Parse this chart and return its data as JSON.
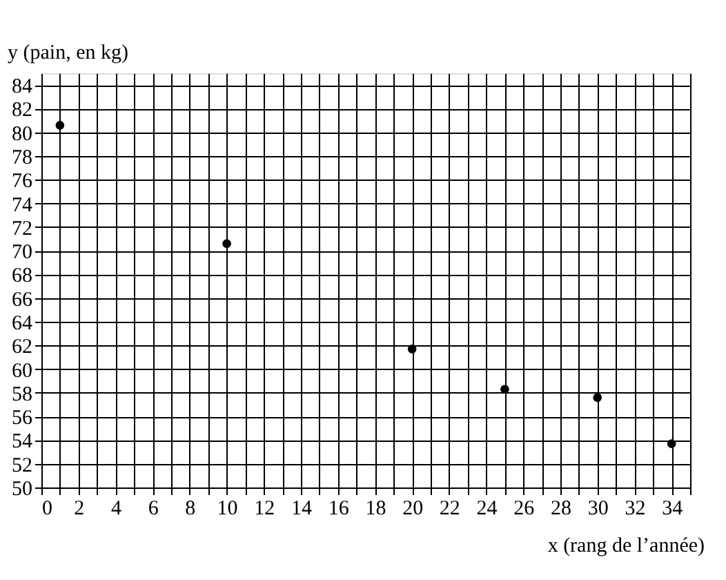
{
  "chart_data": {
    "type": "scatter",
    "xlabel": "x (rang de l’année)",
    "ylabel": "y (pain, en kg)",
    "x": [
      1,
      10,
      20,
      25,
      30,
      34
    ],
    "series": [
      {
        "color": "#000000",
        "values": [
          80.6,
          70.6,
          61.7,
          58.3,
          57.6,
          53.7
        ]
      }
    ],
    "xlim": [
      0,
      35
    ],
    "ylim": [
      50,
      85
    ],
    "xticks": [
      0,
      {
        "value": 1,
        "label": null
      },
      2,
      {
        "value": 3,
        "label": null
      },
      4,
      {
        "value": 5,
        "label": null
      },
      6,
      {
        "value": 7,
        "label": null
      },
      8,
      {
        "value": 9,
        "label": null
      },
      10,
      {
        "value": 11,
        "label": null
      },
      12,
      {
        "value": 13,
        "label": null
      },
      14,
      {
        "value": 15,
        "label": null
      },
      16,
      {
        "value": 17,
        "label": null
      },
      18,
      {
        "value": 19,
        "label": null
      },
      20,
      {
        "value": 21,
        "label": null
      },
      22,
      {
        "value": 23,
        "label": null
      },
      24,
      {
        "value": 25,
        "label": null
      },
      26,
      {
        "value": 27,
        "label": null
      },
      28,
      {
        "value": 29,
        "label": null
      },
      30,
      {
        "value": 31,
        "label": null
      },
      32,
      {
        "value": 33,
        "label": null
      },
      34,
      {
        "value": 35,
        "label": null
      }
    ],
    "yticks": [
      50,
      52,
      54,
      56,
      58,
      60,
      62,
      64,
      66,
      68,
      70,
      72,
      74,
      76,
      78,
      80,
      82,
      84
    ],
    "grid": true,
    "marker": "circle"
  }
}
